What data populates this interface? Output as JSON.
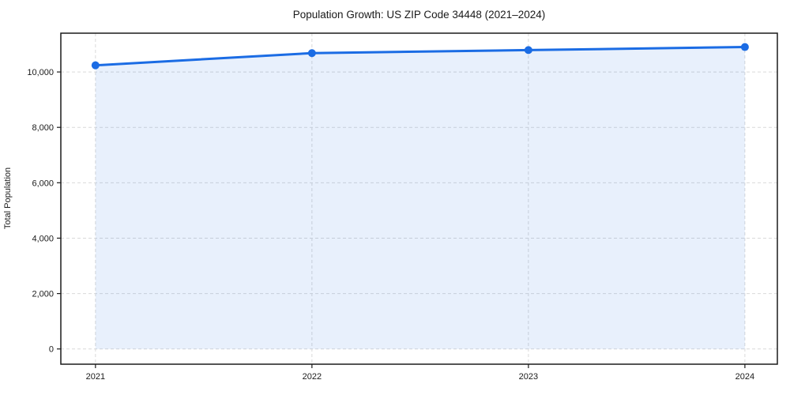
{
  "figure": {
    "title": "Population Growth: US ZIP Code 34448 (2021–2024)",
    "ylabel": "Total Population"
  },
  "chart_data": {
    "type": "area",
    "title": "Population Growth: US ZIP Code 34448 (2021–2024)",
    "xlabel": "",
    "ylabel": "Total Population",
    "x": [
      2021,
      2022,
      2023,
      2024
    ],
    "values": [
      10240,
      10680,
      10790,
      10900
    ],
    "series": [
      {
        "name": "Total Population",
        "values": [
          10240,
          10680,
          10790,
          10900
        ]
      }
    ],
    "xticks": [
      2021,
      2022,
      2023,
      2024
    ],
    "xtick_labels": [
      "2021",
      "2022",
      "2023",
      "2024"
    ],
    "yticks": [
      0,
      2000,
      4000,
      6000,
      8000,
      10000
    ],
    "ytick_labels": [
      "0",
      "2,000",
      "4,000",
      "6,000",
      "8,000",
      "10,000"
    ],
    "xlim": [
      2020.84,
      2024.15
    ],
    "ylim": [
      -550,
      11400
    ],
    "fill_baseline": 0,
    "grid": true,
    "grid_style": "dashed",
    "legend": false,
    "colors": {
      "line": "#1b6ce4",
      "marker": "#1b6ce4",
      "fill": "rgba(27,108,228,0.10)",
      "grid": "#d9d9d9",
      "spine": "#1a1a1a",
      "text": "#1a1a1a",
      "background": "#ffffff"
    }
  }
}
